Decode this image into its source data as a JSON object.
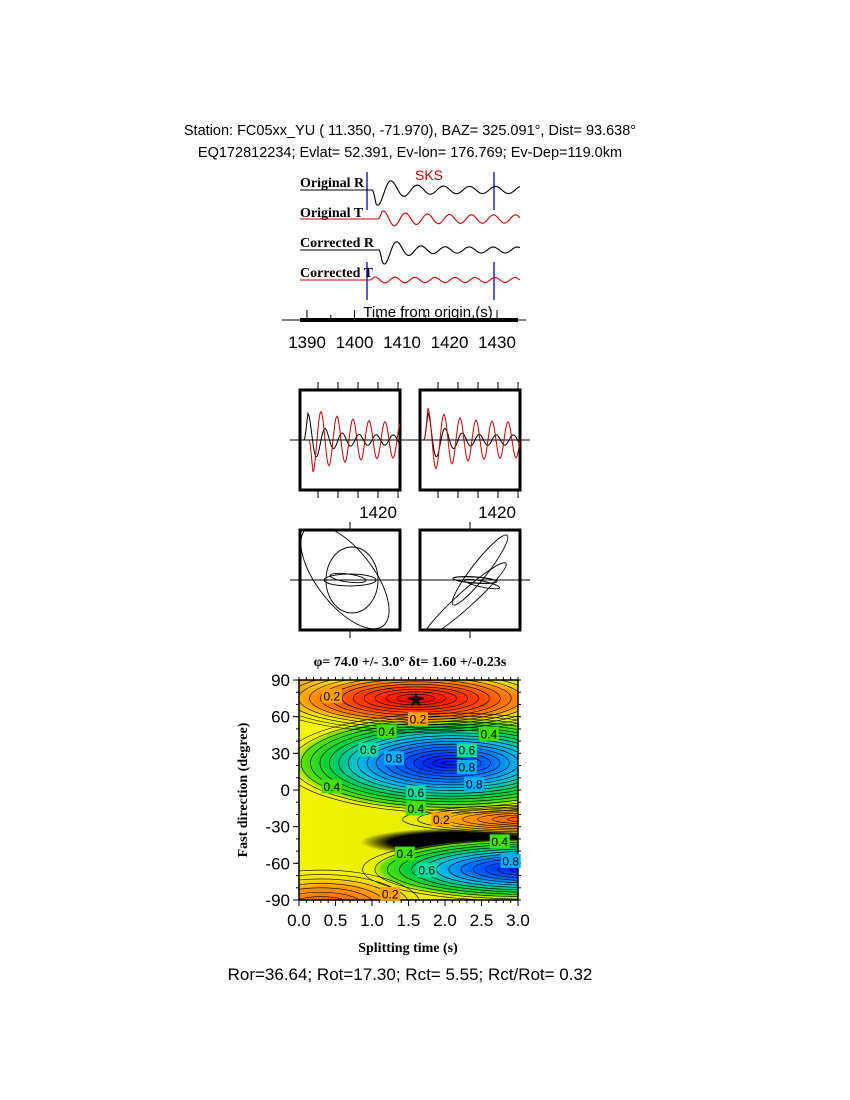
{
  "header": {
    "line1": "Station: FC05xx_YU (  11.350,  -71.970), BAZ=  325.091°, Dist=   93.638°",
    "line2": "EQ172812234; Evlat=  52.391, Ev-lon= 176.769; Ev-Dep=119.0km"
  },
  "traces": {
    "phase_label": "SKS",
    "labels": [
      "Original R",
      "Original T",
      "Corrected R",
      "Corrected T"
    ],
    "xlabel": "Time from origin (s)",
    "xticks": [
      "1390",
      "1400",
      "1410",
      "1420",
      "1430"
    ],
    "colors": {
      "radial": "#000000",
      "transverse": "#cc0000",
      "window": "#0000cc"
    }
  },
  "panels": {
    "tick_label_left": "1420",
    "tick_label_right": "1420"
  },
  "chart_data": {
    "type": "heatmap",
    "title": "φ= 74.0 +/- 3.0° δt= 1.60 +/-0.23s",
    "xlabel": "Splitting time (s)",
    "ylabel": "Fast direction (degree)",
    "xlim": [
      0.0,
      3.0
    ],
    "ylim": [
      -90,
      90
    ],
    "xticks": [
      "0.0",
      "0.5",
      "1.0",
      "1.5",
      "2.0",
      "2.5",
      "3.0"
    ],
    "yticks": [
      "90",
      "60",
      "30",
      "0",
      "-30",
      "-60",
      "-90"
    ],
    "best_fit": {
      "dt": 1.6,
      "phi": 74.0,
      "marker": "star"
    },
    "contour_labels": [
      {
        "text": "0.2",
        "x": 1.63,
        "y": 58
      },
      {
        "text": "0.4",
        "x": 1.2,
        "y": 48
      },
      {
        "text": "0.4",
        "x": 2.6,
        "y": 46
      },
      {
        "text": "0.6",
        "x": 2.3,
        "y": 44
      },
      {
        "text": "0.8",
        "x": 2.3,
        "y": 36
      },
      {
        "text": "0.6",
        "x": 0.95,
        "y": 33
      },
      {
        "text": "0.8",
        "x": 1.3,
        "y": 26
      },
      {
        "text": "0.8",
        "x": 2.4,
        "y": 10
      },
      {
        "text": "0.6",
        "x": 1.6,
        "y": -2
      },
      {
        "text": "0.4",
        "x": 1.6,
        "y": -11
      },
      {
        "text": "0.2",
        "x": 1.95,
        "y": -24
      },
      {
        "text": "0.4",
        "x": 0.45,
        "y": 3
      },
      {
        "text": "0.4",
        "x": 2.75,
        "y": -42
      },
      {
        "text": "0.8",
        "x": 2.9,
        "y": -58
      },
      {
        "text": "0.4",
        "x": 1.45,
        "y": -52
      },
      {
        "text": "0.6",
        "x": 1.75,
        "y": -64
      },
      {
        "text": "0.2",
        "x": 1.25,
        "y": -85
      },
      {
        "text": "0.2",
        "x": 0.45,
        "y": 77
      }
    ],
    "colormap": [
      "#ff0000",
      "#ff8000",
      "#f0f000",
      "#00d000",
      "#00c0ff",
      "#0000ff"
    ]
  },
  "footer": {
    "stats": "Ror=36.64; Rot=17.30; Rct= 5.55; Rct/Rot= 0.32"
  }
}
